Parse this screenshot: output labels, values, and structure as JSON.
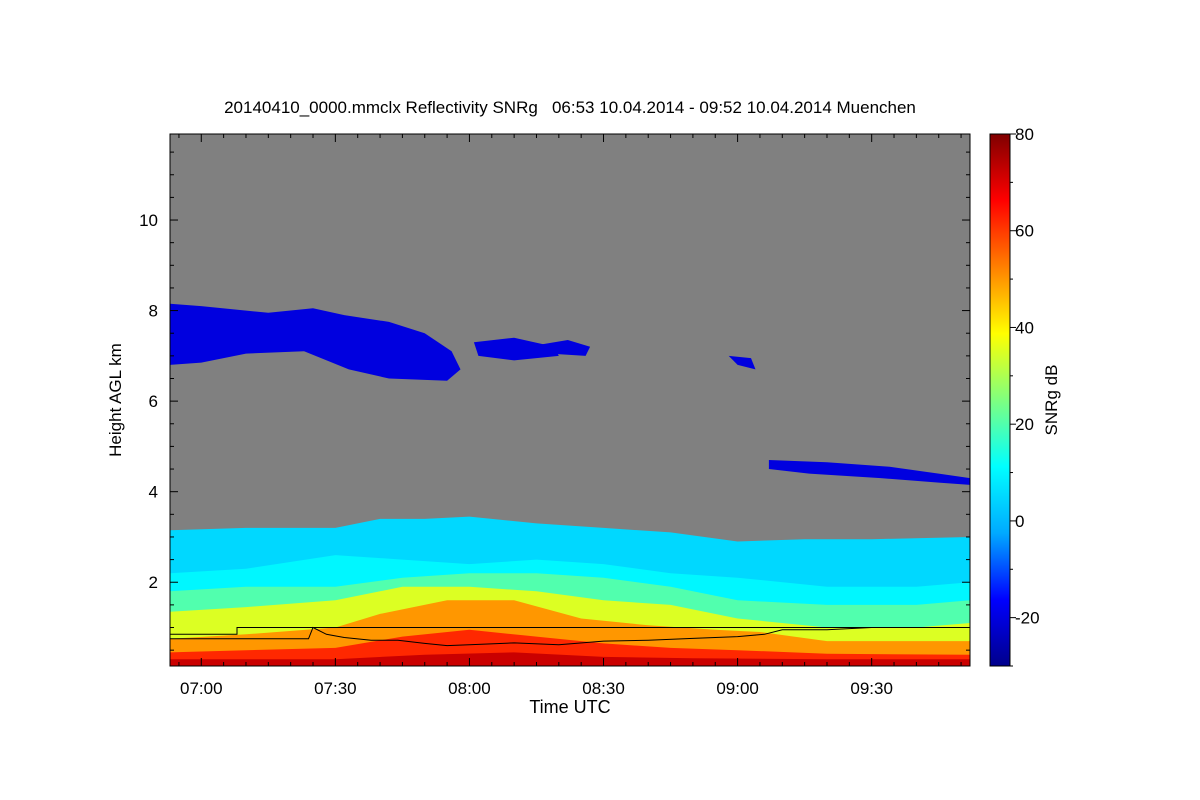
{
  "chart_data": {
    "type": "heatmap",
    "title": "20140410_0000.mmclx Reflectivity SNRg   06:53 10.04.2014 - 09:52 10.04.2014 Muenchen",
    "xlabel": "Time UTC",
    "ylabel": "Height AGL km",
    "colorbar_label": "SNRg dB",
    "x_range_utc": [
      "06:53",
      "09:52"
    ],
    "xlim_minutes": [
      413,
      592
    ],
    "x_ticks": [
      {
        "label": "07:00",
        "value": 420
      },
      {
        "label": "07:30",
        "value": 450
      },
      {
        "label": "08:00",
        "value": 480
      },
      {
        "label": "08:30",
        "value": 510
      },
      {
        "label": "09:00",
        "value": 540
      },
      {
        "label": "09:30",
        "value": 570
      }
    ],
    "ylim": [
      0.15,
      11.9
    ],
    "y_ticks": [
      2,
      4,
      6,
      8,
      10
    ],
    "colorbar_range": [
      -30,
      80
    ],
    "colorbar_ticks": [
      -20,
      0,
      20,
      40,
      60,
      80
    ],
    "colormap": [
      "#00008b",
      "#0000ff",
      "#00aaff",
      "#00ffff",
      "#7fff7f",
      "#ffff00",
      "#ff8000",
      "#ff0000",
      "#800000"
    ],
    "background_color": "#808080",
    "regions": [
      {
        "name": "upper cloud layer",
        "snr_db": -20,
        "points": [
          [
            413,
            8.15
          ],
          [
            420,
            8.1
          ],
          [
            435,
            7.95
          ],
          [
            445,
            8.05
          ],
          [
            452,
            7.9
          ],
          [
            462,
            7.75
          ],
          [
            470,
            7.5
          ],
          [
            476,
            7.1
          ],
          [
            478,
            6.7
          ],
          [
            475,
            6.45
          ],
          [
            462,
            6.5
          ],
          [
            453,
            6.7
          ],
          [
            443,
            7.1
          ],
          [
            430,
            7.05
          ],
          [
            420,
            6.85
          ],
          [
            413,
            6.8
          ]
        ]
      },
      {
        "name": "cloud fragment",
        "snr_db": -20,
        "points": [
          [
            481,
            7.3
          ],
          [
            490,
            7.4
          ],
          [
            499,
            7.2
          ],
          [
            500,
            7.0
          ],
          [
            490,
            6.9
          ],
          [
            482,
            7.0
          ]
        ]
      },
      {
        "name": "cloud fragment",
        "snr_db": -20,
        "points": [
          [
            496,
            7.25
          ],
          [
            502,
            7.35
          ],
          [
            507,
            7.2
          ],
          [
            506,
            7.0
          ],
          [
            498,
            7.05
          ]
        ]
      },
      {
        "name": "cloud fragment",
        "snr_db": -20,
        "points": [
          [
            538,
            7.0
          ],
          [
            543,
            6.95
          ],
          [
            544,
            6.7
          ],
          [
            540,
            6.8
          ]
        ]
      },
      {
        "name": "mid-level cloud layer",
        "snr_db": -20,
        "points": [
          [
            547,
            4.7
          ],
          [
            560,
            4.65
          ],
          [
            574,
            4.55
          ],
          [
            585,
            4.4
          ],
          [
            592,
            4.3
          ],
          [
            592,
            4.15
          ],
          [
            585,
            4.2
          ],
          [
            572,
            4.3
          ],
          [
            556,
            4.4
          ],
          [
            547,
            4.5
          ]
        ]
      },
      {
        "name": "boundary layer top",
        "snr_db": 5,
        "points": [
          [
            413,
            3.15
          ],
          [
            430,
            3.2
          ],
          [
            450,
            3.2
          ],
          [
            460,
            3.4
          ],
          [
            470,
            3.4
          ],
          [
            480,
            3.45
          ],
          [
            495,
            3.3
          ],
          [
            510,
            3.2
          ],
          [
            525,
            3.1
          ],
          [
            540,
            2.9
          ],
          [
            555,
            2.95
          ],
          [
            570,
            2.95
          ],
          [
            592,
            3.0
          ],
          [
            592,
            0.15
          ],
          [
            413,
            0.15
          ]
        ]
      },
      {
        "name": "boundary layer",
        "snr_db": 10,
        "points": [
          [
            413,
            2.2
          ],
          [
            430,
            2.3
          ],
          [
            450,
            2.6
          ],
          [
            465,
            2.5
          ],
          [
            480,
            2.4
          ],
          [
            495,
            2.5
          ],
          [
            510,
            2.4
          ],
          [
            525,
            2.2
          ],
          [
            540,
            2.1
          ],
          [
            560,
            1.9
          ],
          [
            580,
            1.9
          ],
          [
            592,
            2.0
          ],
          [
            592,
            0.15
          ],
          [
            413,
            0.15
          ]
        ]
      },
      {
        "name": "boundary layer",
        "snr_db": 20,
        "points": [
          [
            413,
            1.8
          ],
          [
            430,
            1.9
          ],
          [
            450,
            1.9
          ],
          [
            465,
            2.1
          ],
          [
            480,
            2.2
          ],
          [
            495,
            2.2
          ],
          [
            510,
            2.1
          ],
          [
            525,
            1.9
          ],
          [
            540,
            1.6
          ],
          [
            560,
            1.5
          ],
          [
            580,
            1.5
          ],
          [
            592,
            1.6
          ],
          [
            592,
            0.15
          ],
          [
            413,
            0.15
          ]
        ]
      },
      {
        "name": "boundary layer",
        "snr_db": 35,
        "points": [
          [
            413,
            1.35
          ],
          [
            430,
            1.45
          ],
          [
            450,
            1.6
          ],
          [
            465,
            1.9
          ],
          [
            480,
            1.9
          ],
          [
            495,
            1.8
          ],
          [
            510,
            1.6
          ],
          [
            525,
            1.5
          ],
          [
            540,
            1.2
          ],
          [
            560,
            1.0
          ],
          [
            580,
            1.0
          ],
          [
            592,
            1.1
          ],
          [
            592,
            0.15
          ],
          [
            413,
            0.15
          ]
        ]
      },
      {
        "name": "near-surface layer",
        "snr_db": 50,
        "points": [
          [
            413,
            0.75
          ],
          [
            430,
            0.85
          ],
          [
            450,
            1.0
          ],
          [
            460,
            1.3
          ],
          [
            475,
            1.6
          ],
          [
            490,
            1.6
          ],
          [
            505,
            1.2
          ],
          [
            520,
            1.05
          ],
          [
            535,
            0.95
          ],
          [
            545,
            0.9
          ],
          [
            560,
            0.7
          ],
          [
            580,
            0.7
          ],
          [
            592,
            0.7
          ],
          [
            592,
            0.15
          ],
          [
            413,
            0.15
          ]
        ]
      },
      {
        "name": "near-surface layer",
        "snr_db": 62,
        "points": [
          [
            413,
            0.45
          ],
          [
            430,
            0.5
          ],
          [
            450,
            0.55
          ],
          [
            465,
            0.8
          ],
          [
            480,
            0.95
          ],
          [
            495,
            0.8
          ],
          [
            510,
            0.65
          ],
          [
            525,
            0.55
          ],
          [
            540,
            0.5
          ],
          [
            560,
            0.42
          ],
          [
            592,
            0.4
          ],
          [
            592,
            0.15
          ],
          [
            413,
            0.15
          ]
        ]
      },
      {
        "name": "surface clutter",
        "snr_db": 72,
        "points": [
          [
            413,
            0.3
          ],
          [
            450,
            0.3
          ],
          [
            470,
            0.4
          ],
          [
            490,
            0.45
          ],
          [
            510,
            0.35
          ],
          [
            530,
            0.32
          ],
          [
            560,
            0.3
          ],
          [
            592,
            0.3
          ],
          [
            592,
            0.15
          ],
          [
            413,
            0.15
          ]
        ]
      }
    ],
    "lines": [
      {
        "name": "boundary layer height",
        "color": "#000000",
        "points": [
          [
            413,
            0.85
          ],
          [
            428,
            0.85
          ],
          [
            428,
            1.0
          ],
          [
            592,
            1.0
          ]
        ]
      },
      {
        "name": "cloud base height",
        "color": "#000000",
        "points": [
          [
            413,
            0.75
          ],
          [
            444,
            0.75
          ],
          [
            445,
            1.0
          ],
          [
            448,
            0.85
          ],
          [
            452,
            0.78
          ],
          [
            458,
            0.72
          ],
          [
            464,
            0.72
          ],
          [
            470,
            0.65
          ],
          [
            475,
            0.6
          ],
          [
            480,
            0.62
          ],
          [
            490,
            0.66
          ],
          [
            500,
            0.62
          ],
          [
            510,
            0.7
          ],
          [
            520,
            0.72
          ],
          [
            530,
            0.76
          ],
          [
            540,
            0.8
          ],
          [
            546,
            0.85
          ],
          [
            550,
            0.95
          ],
          [
            560,
            0.95
          ],
          [
            570,
            1.0
          ]
        ]
      }
    ]
  }
}
